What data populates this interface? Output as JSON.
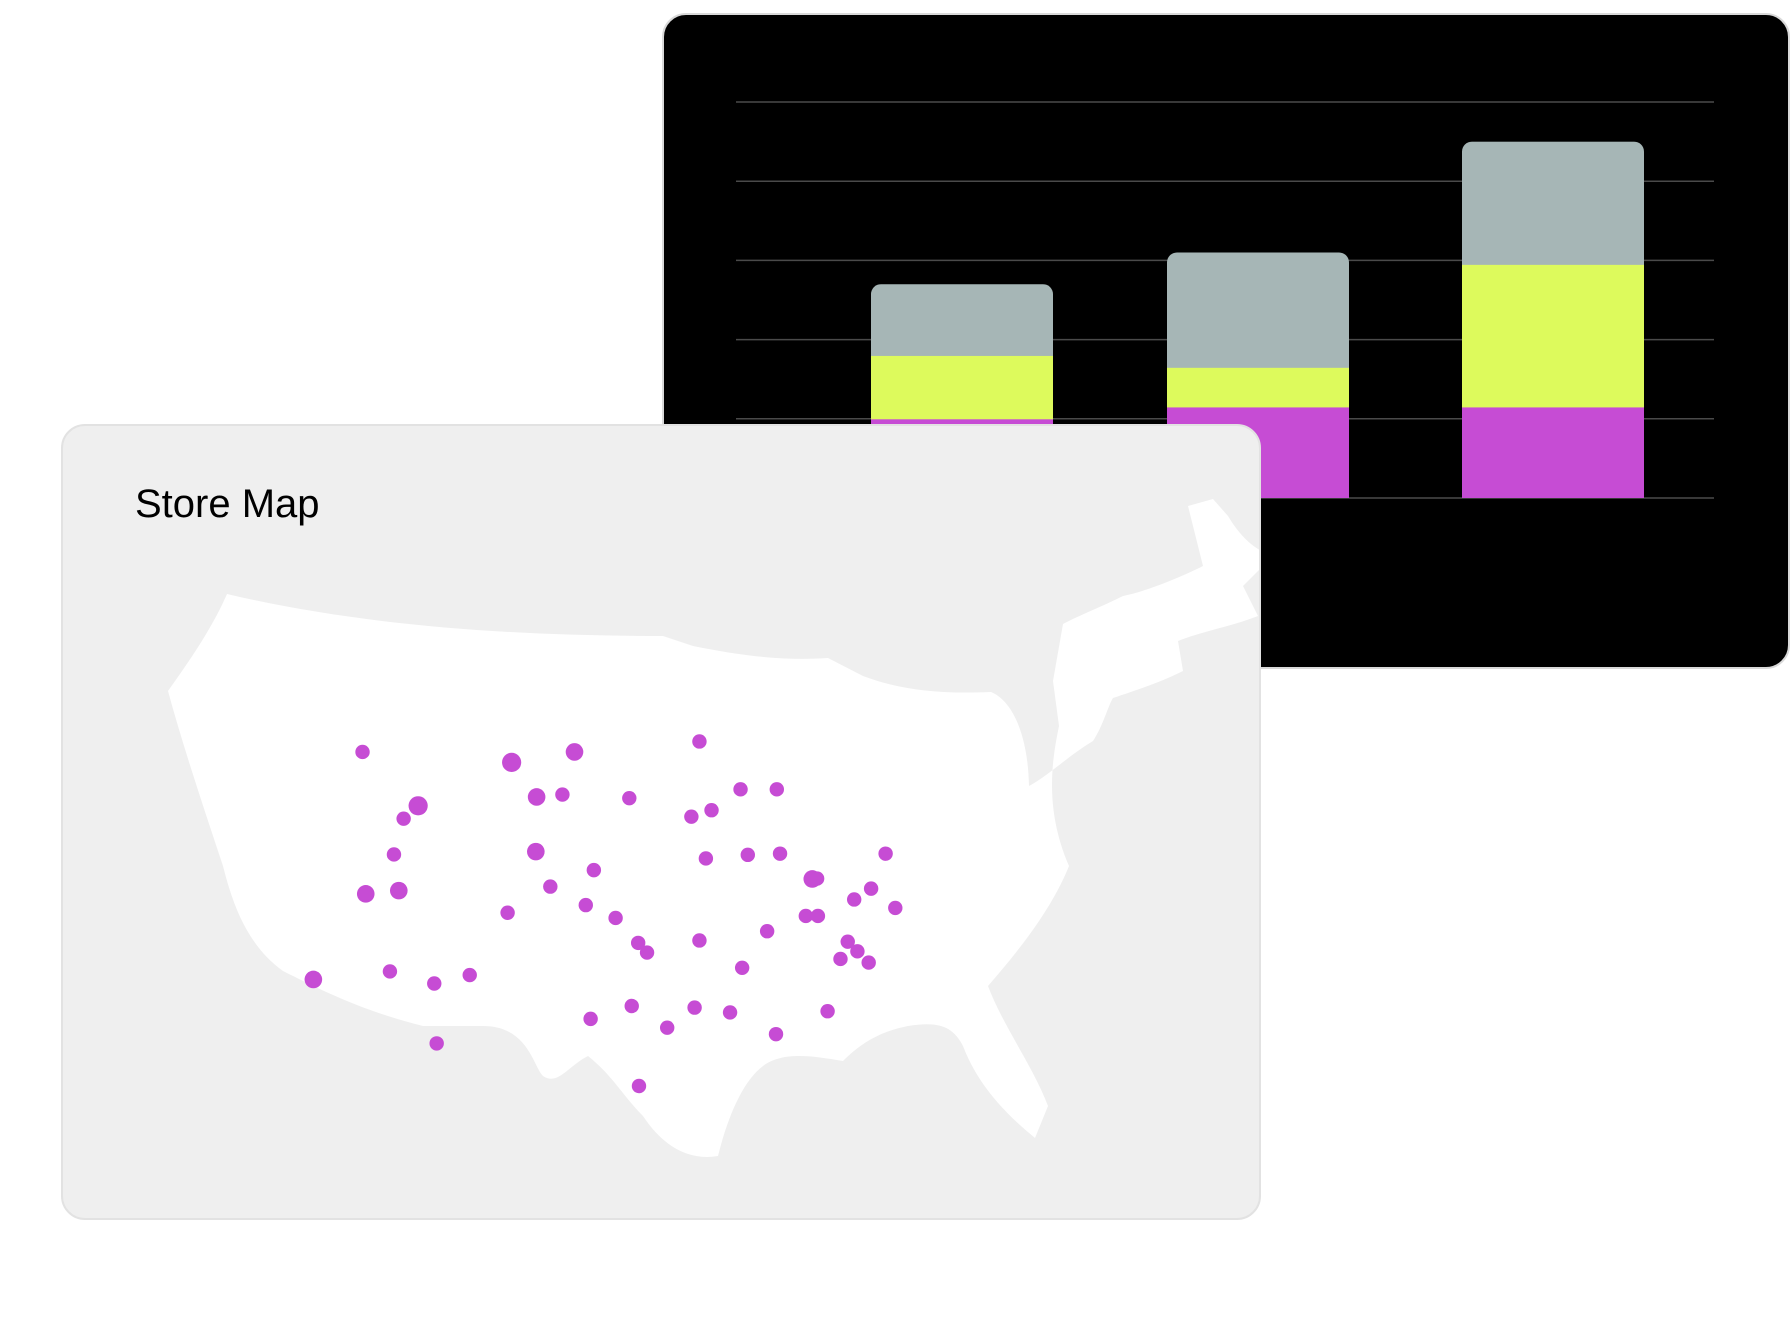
{
  "chart_data": {
    "type": "bar",
    "stacked": true,
    "title": "",
    "categories": [
      "",
      "",
      ""
    ],
    "series": [
      {
        "values": [
          2.0,
          2.3,
          2.3
        ],
        "color": "#c64cd4"
      },
      {
        "values": [
          1.6,
          1.0,
          3.6
        ],
        "color": "#ddfa5c"
      },
      {
        "values": [
          1.8,
          2.9,
          3.1
        ],
        "color": "#a6b6b6"
      }
    ],
    "ylim": [
      0,
      10
    ],
    "grid": true,
    "legend": "none"
  },
  "map": {
    "title": "Store Map",
    "land_color": "#ffffff",
    "marker_color": "#c64cd4",
    "markers": [
      [
        0.121,
        0.169,
        0.9
      ],
      [
        0.306,
        0.195,
        1.2
      ],
      [
        0.384,
        0.169,
        1.1
      ],
      [
        0.539,
        0.143,
        0.9
      ],
      [
        0.19,
        0.303,
        1.2
      ],
      [
        0.172,
        0.335,
        0.9
      ],
      [
        0.337,
        0.281,
        1.1
      ],
      [
        0.369,
        0.275,
        0.9
      ],
      [
        0.452,
        0.284,
        0.9
      ],
      [
        0.59,
        0.262,
        0.9
      ],
      [
        0.635,
        0.262,
        0.9
      ],
      [
        0.529,
        0.33,
        0.9
      ],
      [
        0.554,
        0.314,
        0.9
      ],
      [
        0.336,
        0.417,
        1.1
      ],
      [
        0.16,
        0.424,
        0.9
      ],
      [
        0.408,
        0.463,
        0.9
      ],
      [
        0.547,
        0.434,
        0.9
      ],
      [
        0.599,
        0.425,
        0.9
      ],
      [
        0.639,
        0.422,
        0.9
      ],
      [
        0.679,
        0.485,
        1.1
      ],
      [
        0.685,
        0.484,
        0.9
      ],
      [
        0.77,
        0.422,
        0.9
      ],
      [
        0.125,
        0.522,
        1.1
      ],
      [
        0.166,
        0.514,
        1.1
      ],
      [
        0.354,
        0.504,
        0.9
      ],
      [
        0.301,
        0.569,
        0.9
      ],
      [
        0.398,
        0.55,
        0.9
      ],
      [
        0.435,
        0.582,
        0.9
      ],
      [
        0.671,
        0.577,
        0.9
      ],
      [
        0.686,
        0.577,
        0.9
      ],
      [
        0.731,
        0.536,
        0.9
      ],
      [
        0.752,
        0.509,
        0.9
      ],
      [
        0.782,
        0.557,
        0.9
      ],
      [
        0.623,
        0.615,
        0.9
      ],
      [
        0.463,
        0.644,
        0.9
      ],
      [
        0.474,
        0.668,
        0.9
      ],
      [
        0.539,
        0.638,
        0.9
      ],
      [
        0.06,
        0.735,
        1.1
      ],
      [
        0.155,
        0.715,
        0.9
      ],
      [
        0.21,
        0.745,
        0.9
      ],
      [
        0.254,
        0.724,
        0.9
      ],
      [
        0.723,
        0.641,
        0.9
      ],
      [
        0.735,
        0.665,
        0.9
      ],
      [
        0.714,
        0.684,
        0.9
      ],
      [
        0.749,
        0.693,
        0.9
      ],
      [
        0.592,
        0.706,
        0.9
      ],
      [
        0.404,
        0.833,
        0.9
      ],
      [
        0.455,
        0.801,
        0.9
      ],
      [
        0.499,
        0.855,
        0.9
      ],
      [
        0.533,
        0.805,
        0.9
      ],
      [
        0.577,
        0.817,
        0.9
      ],
      [
        0.634,
        0.871,
        0.9
      ],
      [
        0.698,
        0.814,
        0.9
      ],
      [
        0.213,
        0.894,
        0.9
      ],
      [
        0.464,
        1.0,
        0.9
      ]
    ]
  }
}
